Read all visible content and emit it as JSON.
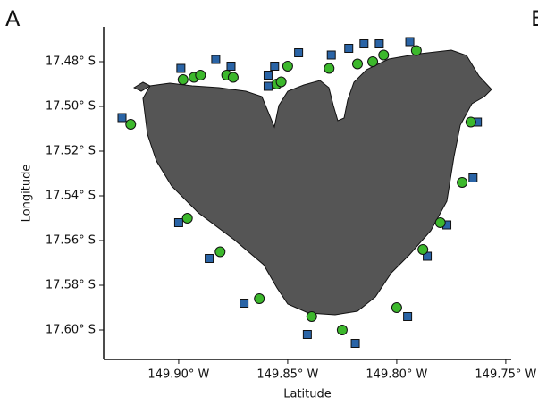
{
  "panel_label": "A",
  "next_panel_label": "B",
  "chart_data": {
    "type": "scatter",
    "xlabel": "Latitude",
    "ylabel": "Longitude",
    "xlim": [
      -149.9344,
      -149.7475
    ],
    "ylim": [
      -17.6132,
      -17.4644
    ],
    "xticks": [
      {
        "value": -149.9,
        "label": "149.90° W"
      },
      {
        "value": -149.85,
        "label": "149.85° W"
      },
      {
        "value": -149.8,
        "label": "149.80° W"
      },
      {
        "value": -149.75,
        "label": "149.75° W"
      }
    ],
    "yticks": [
      {
        "value": -17.48,
        "label": "17.48° S"
      },
      {
        "value": -17.5,
        "label": "17.50° S"
      },
      {
        "value": -17.52,
        "label": "17.52° S"
      },
      {
        "value": -17.54,
        "label": "17.54° S"
      },
      {
        "value": -17.56,
        "label": "17.56° S"
      },
      {
        "value": -17.58,
        "label": "17.58° S"
      },
      {
        "value": -17.6,
        "label": "17.60° S"
      }
    ],
    "series": [
      {
        "color": "#2a64a6",
        "marker": "square",
        "x": [
          -149.926,
          -149.899,
          -149.883,
          -149.876,
          -149.856,
          -149.859,
          -149.859,
          -149.845,
          -149.83,
          -149.822,
          -149.815,
          -149.808,
          -149.794,
          -149.763,
          -149.765,
          -149.777,
          -149.786,
          -149.795,
          -149.819,
          -149.841,
          -149.87,
          -149.886,
          -149.9
        ],
        "values": [
          -17.505,
          -17.483,
          -17.479,
          -17.482,
          -17.482,
          -17.486,
          -17.491,
          -17.476,
          -17.477,
          -17.474,
          -17.472,
          -17.472,
          -17.471,
          -17.507,
          -17.532,
          -17.553,
          -17.567,
          -17.594,
          -17.606,
          -17.602,
          -17.588,
          -17.568,
          -17.552
        ]
      },
      {
        "color": "#3cb82c",
        "marker": "circle",
        "x": [
          -149.922,
          -149.898,
          -149.893,
          -149.89,
          -149.878,
          -149.875,
          -149.855,
          -149.853,
          -149.85,
          -149.831,
          -149.818,
          -149.811,
          -149.806,
          -149.791,
          -149.766,
          -149.77,
          -149.78,
          -149.788,
          -149.8,
          -149.825,
          -149.839,
          -149.863,
          -149.881,
          -149.896
        ],
        "values": [
          -17.508,
          -17.488,
          -17.487,
          -17.486,
          -17.486,
          -17.487,
          -17.49,
          -17.489,
          -17.482,
          -17.483,
          -17.481,
          -17.48,
          -17.477,
          -17.475,
          -17.507,
          -17.534,
          -17.552,
          -17.564,
          -17.59,
          -17.6,
          -17.594,
          -17.586,
          -17.565,
          -17.55
        ]
      }
    ]
  }
}
